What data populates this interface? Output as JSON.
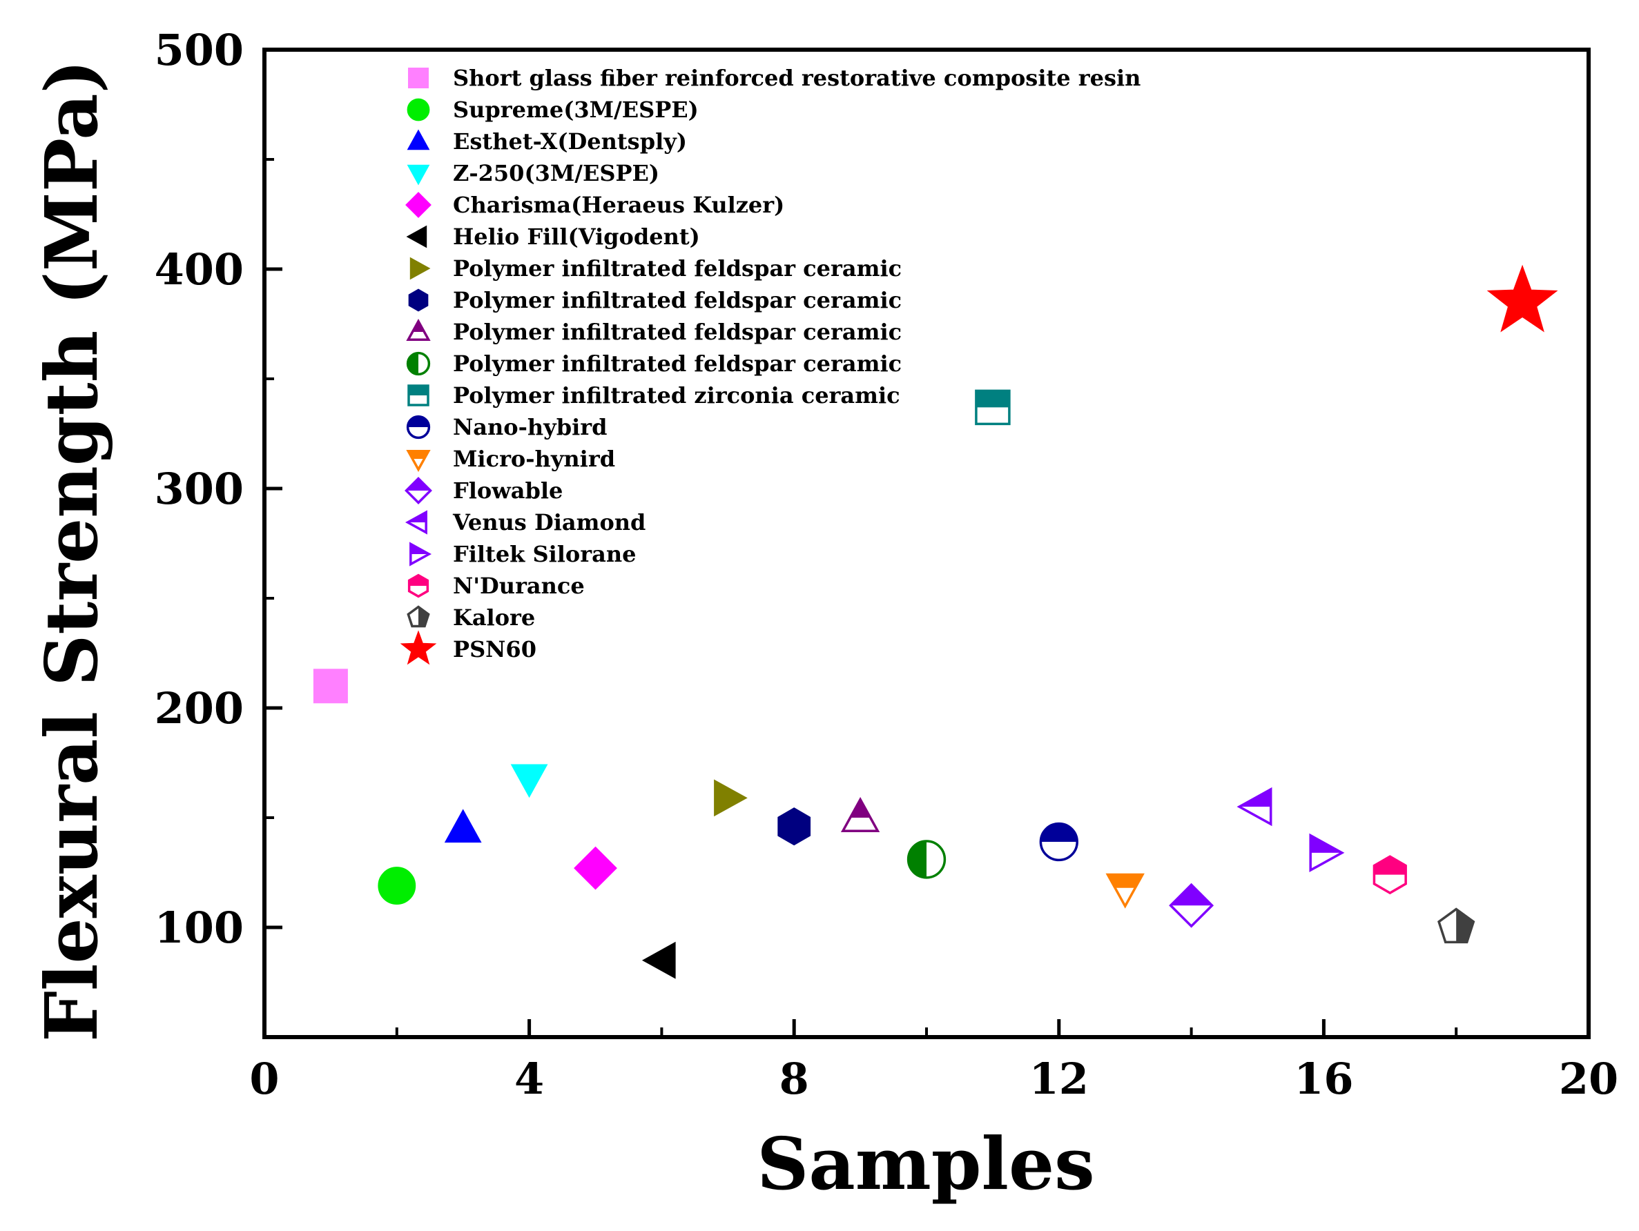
{
  "chart_data": {
    "type": "scatter",
    "title": "",
    "xlabel": "Samples",
    "ylabel": "Flexural Strength (MPa)",
    "xlim": [
      0,
      20
    ],
    "ylim": [
      50,
      500
    ],
    "xticks": [
      0,
      4,
      8,
      12,
      16,
      20
    ],
    "yticks": [
      100,
      200,
      300,
      400,
      500
    ],
    "legend_position": "top-left",
    "series": [
      {
        "name": "Short glass fiber reinforced restorative composite resin",
        "x": 1,
        "y": 210,
        "marker": "square",
        "color": "#ff80ff",
        "fill": "full"
      },
      {
        "name": "Supreme(3M/ESPE)",
        "x": 2,
        "y": 119,
        "marker": "circle",
        "color": "#00ee00",
        "fill": "full"
      },
      {
        "name": "Esthet-X(Dentsply)",
        "x": 3,
        "y": 145,
        "marker": "triangle-up",
        "color": "#0000ff",
        "fill": "full"
      },
      {
        "name": "Z-250(3M/ESPE)",
        "x": 4,
        "y": 168,
        "marker": "triangle-down",
        "color": "#00ffff",
        "fill": "full"
      },
      {
        "name": "Charisma(Heraeus Kulzer)",
        "x": 5,
        "y": 127,
        "marker": "diamond",
        "color": "#ff00ff",
        "fill": "full"
      },
      {
        "name": "Helio Fill(Vigodent)",
        "x": 6,
        "y": 85,
        "marker": "triangle-left",
        "color": "#000000",
        "fill": "full"
      },
      {
        "name": "Polymer infiltrated feldspar ceramic",
        "x": 7,
        "y": 159,
        "marker": "triangle-right",
        "color": "#808000",
        "fill": "full"
      },
      {
        "name": "Polymer infiltrated feldspar ceramic",
        "x": 8,
        "y": 146,
        "marker": "hexagon",
        "color": "#000080",
        "fill": "full"
      },
      {
        "name": "Polymer infiltrated feldspar ceramic",
        "x": 9,
        "y": 150,
        "marker": "triangle-up",
        "color": "#800080",
        "fill": "top"
      },
      {
        "name": "Polymer infiltrated feldspar ceramic",
        "x": 10,
        "y": 131,
        "marker": "circle",
        "color": "#008000",
        "fill": "left"
      },
      {
        "name": "Polymer infiltrated zirconia ceramic",
        "x": 11,
        "y": 337,
        "marker": "square",
        "color": "#008080",
        "fill": "top"
      },
      {
        "name": "Nano-hybird",
        "x": 12,
        "y": 139,
        "marker": "circle",
        "color": "#000099",
        "fill": "top"
      },
      {
        "name": "Micro-hynird",
        "x": 13,
        "y": 118,
        "marker": "triangle-down",
        "color": "#ff8000",
        "fill": "top"
      },
      {
        "name": "Flowable",
        "x": 14,
        "y": 110,
        "marker": "diamond",
        "color": "#8000ff",
        "fill": "top"
      },
      {
        "name": "Venus Diamond",
        "x": 15,
        "y": 155,
        "marker": "triangle-left",
        "color": "#8000ff",
        "fill": "top"
      },
      {
        "name": "Filtek Silorane",
        "x": 16,
        "y": 134,
        "marker": "triangle-right",
        "color": "#8000ff",
        "fill": "top"
      },
      {
        "name": "N'Durance",
        "x": 17,
        "y": 124,
        "marker": "hexagon",
        "color": "#ff0080",
        "fill": "top"
      },
      {
        "name": "Kalore",
        "x": 18,
        "y": 100,
        "marker": "pentagon",
        "color": "#404040",
        "fill": "right"
      },
      {
        "name": "PSN60",
        "x": 19,
        "y": 385,
        "marker": "star",
        "color": "#ff0000",
        "fill": "full"
      }
    ]
  }
}
